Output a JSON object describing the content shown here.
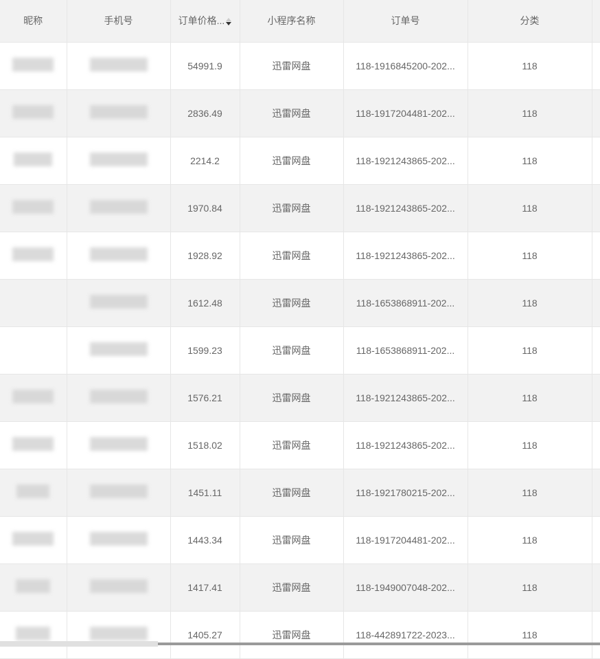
{
  "columns": [
    "昵称",
    "手机号",
    "订单价格...",
    "小程序名称",
    "订单号",
    "分类"
  ],
  "sort": {
    "column": "订单价格...",
    "direction": "descending"
  },
  "rows": [
    {
      "price": "54991.9",
      "app": "迅雷网盘",
      "order": "118-1916845200-202...",
      "category": "118"
    },
    {
      "price": "2836.49",
      "app": "迅雷网盘",
      "order": "118-1917204481-202...",
      "category": "118"
    },
    {
      "price": "2214.2",
      "app": "迅雷网盘",
      "order": "118-1921243865-202...",
      "category": "118"
    },
    {
      "price": "1970.84",
      "app": "迅雷网盘",
      "order": "118-1921243865-202...",
      "category": "118"
    },
    {
      "price": "1928.92",
      "app": "迅雷网盘",
      "order": "118-1921243865-202...",
      "category": "118"
    },
    {
      "price": "1612.48",
      "app": "迅雷网盘",
      "order": "118-1653868911-202...",
      "category": "118"
    },
    {
      "price": "1599.23",
      "app": "迅雷网盘",
      "order": "118-1653868911-202...",
      "category": "118"
    },
    {
      "price": "1576.21",
      "app": "迅雷网盘",
      "order": "118-1921243865-202...",
      "category": "118"
    },
    {
      "price": "1518.02",
      "app": "迅雷网盘",
      "order": "118-1921243865-202...",
      "category": "118"
    },
    {
      "price": "1451.11",
      "app": "迅雷网盘",
      "order": "118-1921780215-202...",
      "category": "118"
    },
    {
      "price": "1443.34",
      "app": "迅雷网盘",
      "order": "118-1917204481-202...",
      "category": "118"
    },
    {
      "price": "1417.41",
      "app": "迅雷网盘",
      "order": "118-1949007048-202...",
      "category": "118"
    },
    {
      "price": "1405.27",
      "app": "迅雷网盘",
      "order": "118-442891722-2023...",
      "category": "118"
    }
  ]
}
